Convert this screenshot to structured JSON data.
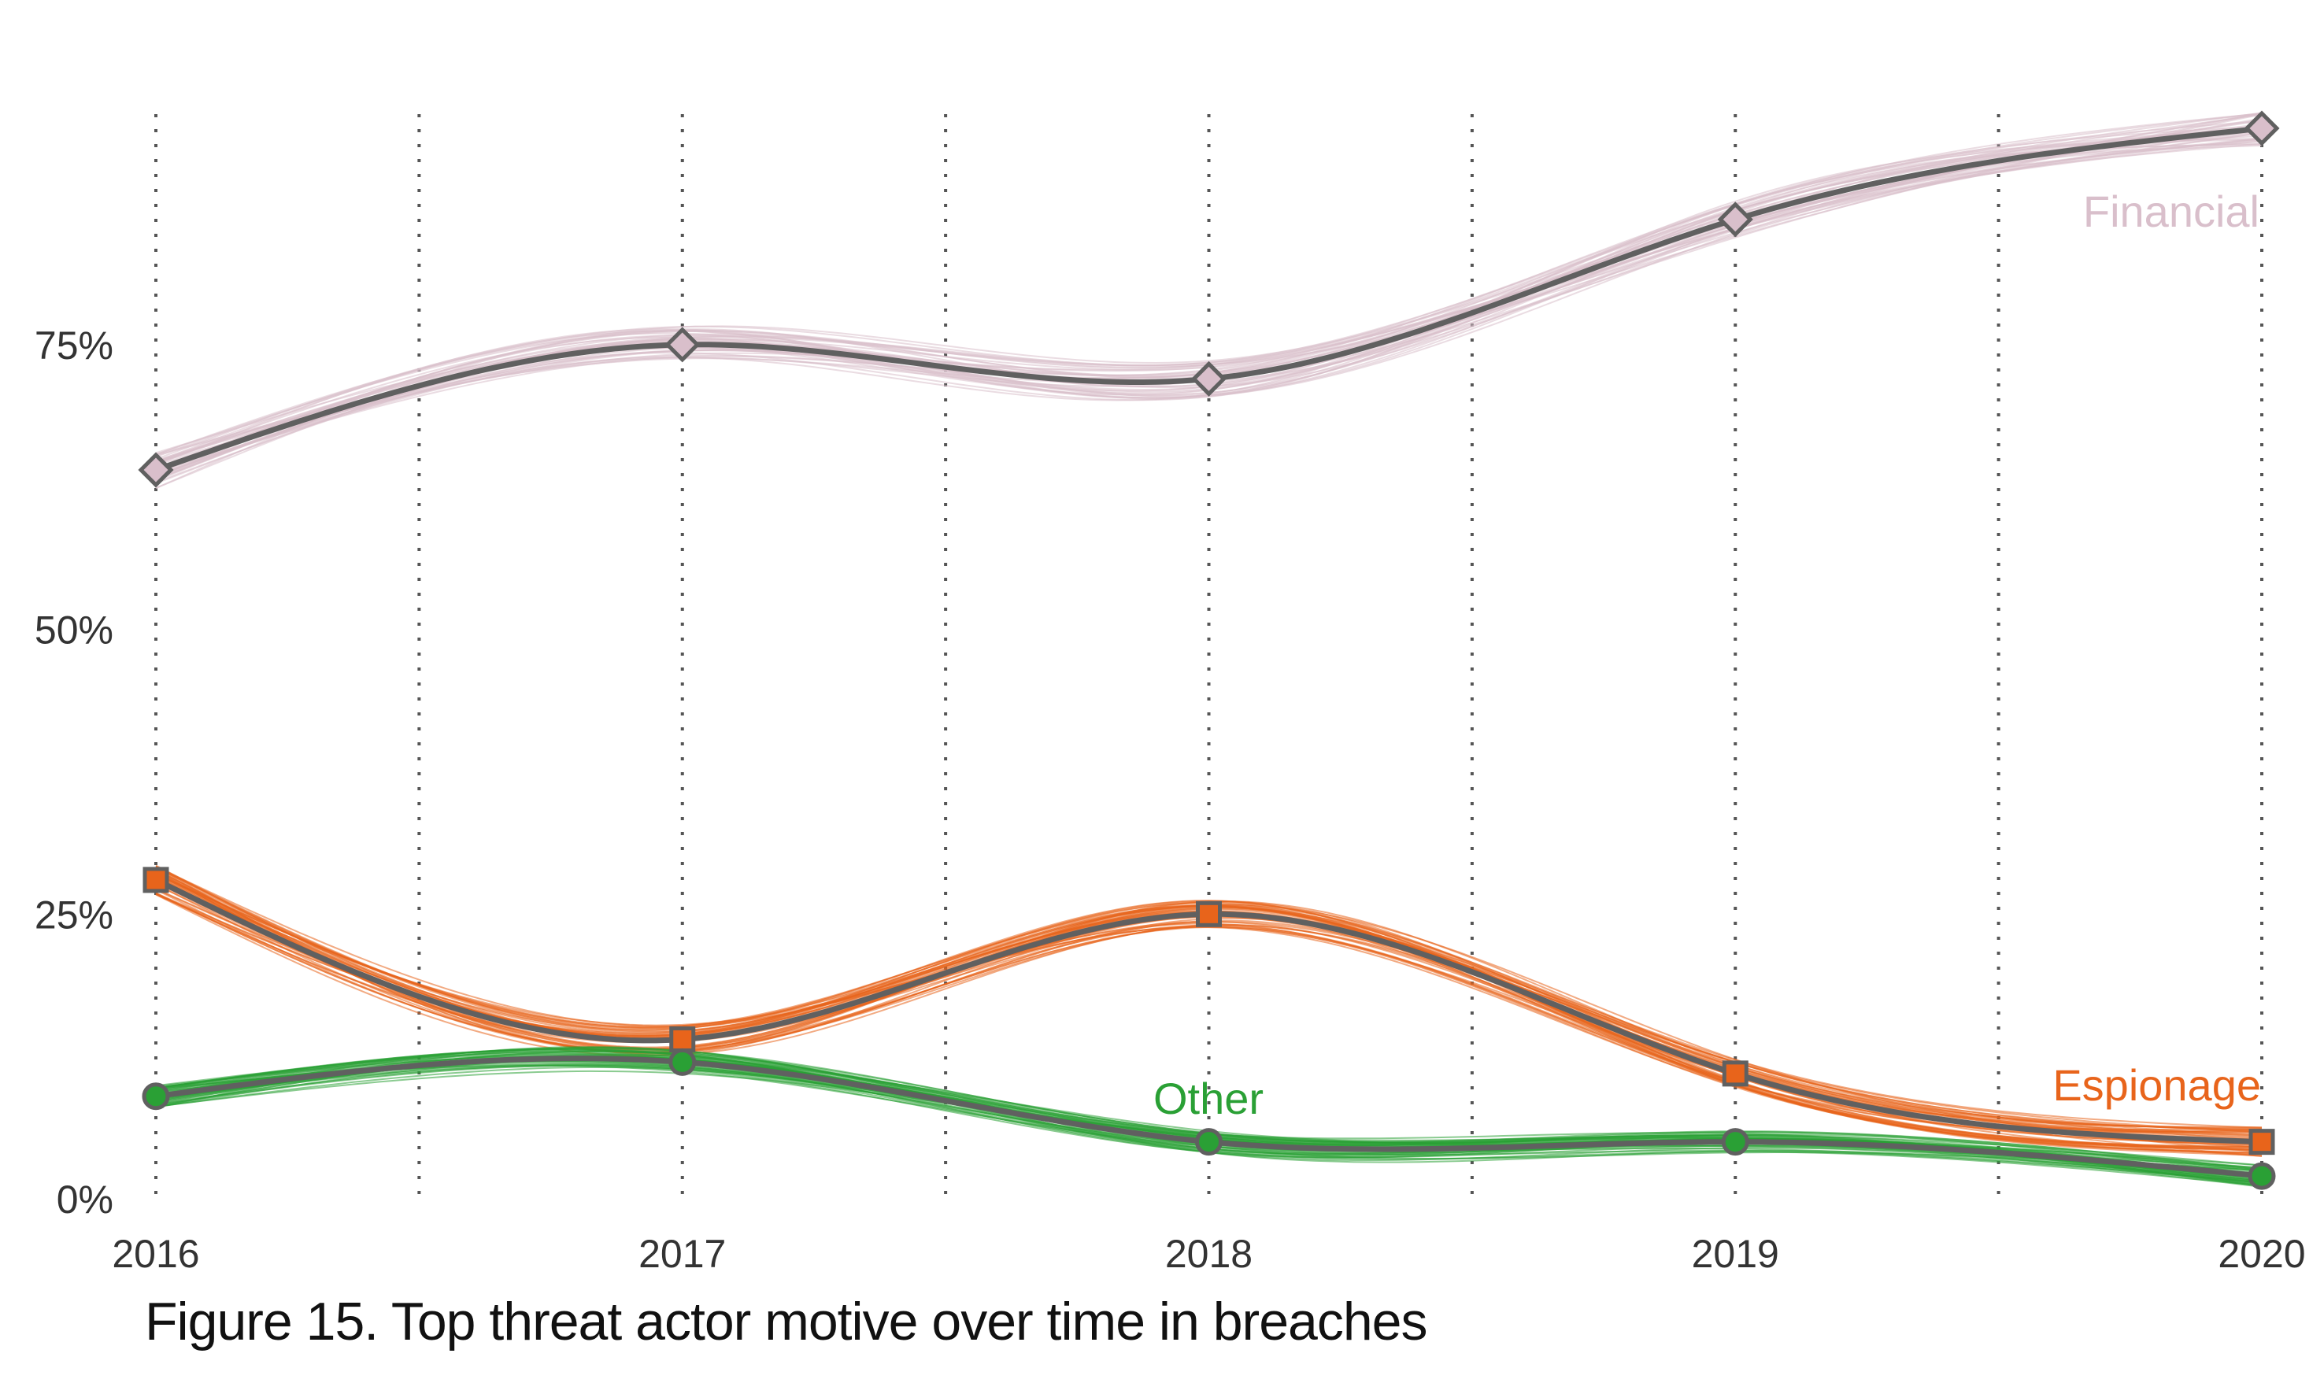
{
  "caption": "Figure 15. Top threat actor motive over time in breaches",
  "chart_data": {
    "type": "line",
    "x": [
      2016,
      2017,
      2018,
      2019,
      2020
    ],
    "x_tick_labels": [
      "2016",
      "2017",
      "2018",
      "2019",
      "2020"
    ],
    "xlim": [
      2016,
      2020
    ],
    "ylim": [
      0,
      94
    ],
    "y_ticks": [
      0,
      25,
      50,
      75
    ],
    "y_tick_labels": [
      "0%",
      "25%",
      "50%",
      "75%"
    ],
    "grid": "vertical dotted lines at each year and half-year",
    "series": [
      {
        "name": "Financial",
        "values": [
          64,
          75,
          72,
          86,
          94
        ],
        "color": "#d9bfcb",
        "marker": "diamond"
      },
      {
        "name": "Espionage",
        "values": [
          28,
          14,
          25,
          11,
          5
        ],
        "color": "#e8641b",
        "marker": "square"
      },
      {
        "name": "Other",
        "values": [
          9,
          12,
          5,
          5,
          2
        ],
        "color": "#2aa035",
        "marker": "circle"
      }
    ],
    "center_line_color": "#606060",
    "uncertainty_bands": "many thin simulated lines around each series"
  }
}
